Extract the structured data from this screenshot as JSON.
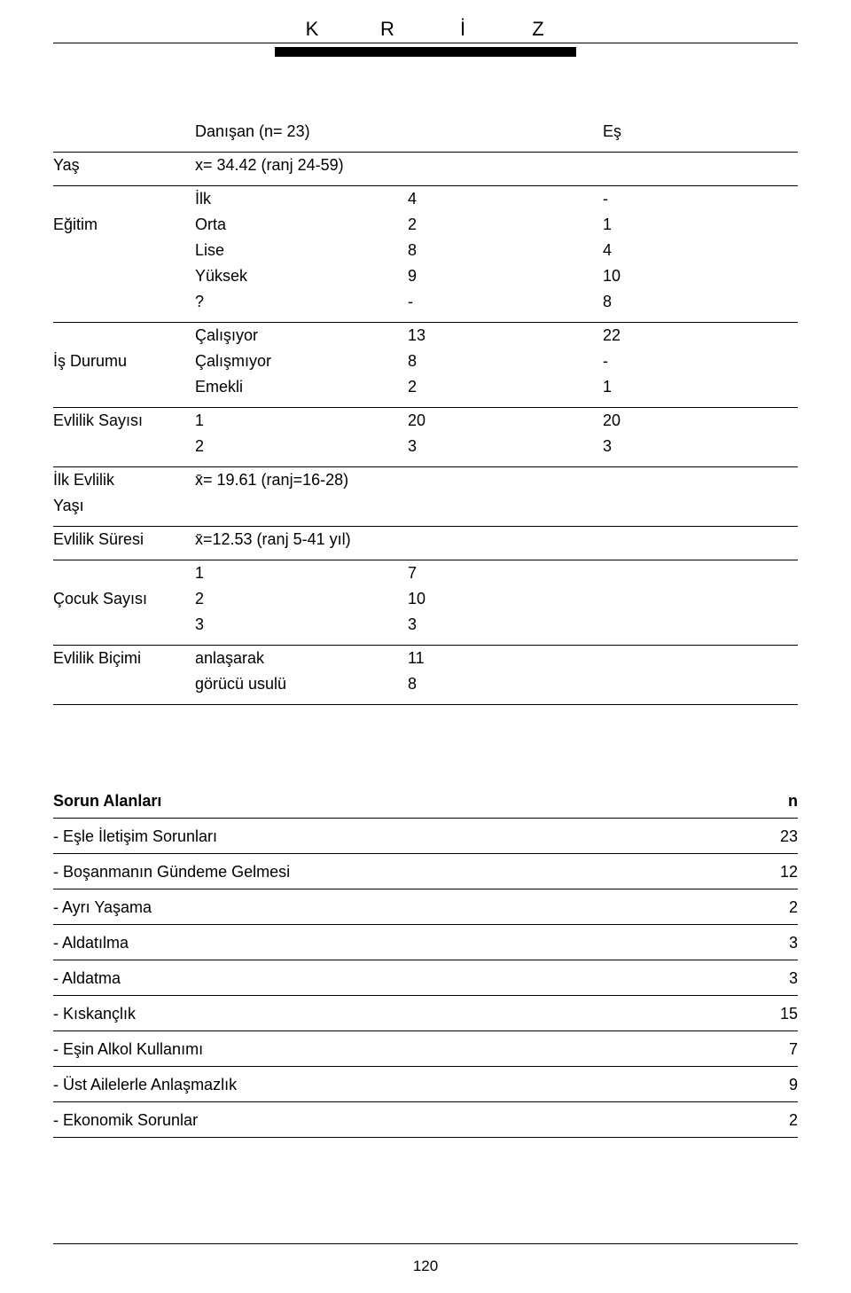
{
  "header": {
    "letters": [
      "K",
      "R",
      "İ",
      "Z"
    ]
  },
  "t1": {
    "col_headers": {
      "c2": "Danışan (n= 23)",
      "c3": "Eş"
    },
    "rows": {
      "yas": {
        "label": "Yaş",
        "sub": "x= 34.42 (ranj 24-59)"
      },
      "egitim": {
        "label": "Eğitim",
        "items": [
          {
            "sub": "İlk",
            "v1": "4",
            "v2": "-"
          },
          {
            "sub": "Orta",
            "v1": "2",
            "v2": "1"
          },
          {
            "sub": "Lise",
            "v1": "8",
            "v2": "4"
          },
          {
            "sub": "Yüksek",
            "v1": "9",
            "v2": "10"
          },
          {
            "sub": "?",
            "v1": "-",
            "v2": "8"
          }
        ]
      },
      "isdurumu": {
        "label": "İş Durumu",
        "items": [
          {
            "sub": "Çalışıyor",
            "v1": "13",
            "v2": "22"
          },
          {
            "sub": "Çalışmıyor",
            "v1": "8",
            "v2": "-"
          },
          {
            "sub": "Emekli",
            "v1": "2",
            "v2": "1"
          }
        ]
      },
      "evsayisi": {
        "label": "Evlilik Sayısı",
        "items": [
          {
            "sub": "1",
            "v1": "20",
            "v2": "20"
          },
          {
            "sub": "2",
            "v1": "3",
            "v2": "3"
          }
        ]
      },
      "ilkevlilik": {
        "label_l1": "İlk Evlilik",
        "label_l2": "Yaşı",
        "sub": "x̄= 19.61 (ranj=16-28)"
      },
      "evsuresi": {
        "label": "Evlilik Süresi",
        "sub": "x̄=12.53 (ranj 5-41 yıl)"
      },
      "cocuk": {
        "label": "Çocuk Sayısı",
        "items": [
          {
            "sub": "1",
            "v1": "7"
          },
          {
            "sub": "2",
            "v1": "10"
          },
          {
            "sub": "3",
            "v1": "3"
          }
        ]
      },
      "evbicimi": {
        "label": "Evlilik Biçimi",
        "items": [
          {
            "sub": "anlaşarak",
            "v1": "11"
          },
          {
            "sub": "görücü usulü",
            "v1": "8"
          }
        ]
      }
    }
  },
  "t2": {
    "header": {
      "label": "Sorun Alanları",
      "n": "n"
    },
    "rows": [
      {
        "label": "- Eşle İletişim Sorunları",
        "n": "23"
      },
      {
        "label": "- Boşanmanın Gündeme Gelmesi",
        "n": "12"
      },
      {
        "label": "- Ayrı Yaşama",
        "n": "2"
      },
      {
        "label": "- Aldatılma",
        "n": "3"
      },
      {
        "label": "- Aldatma",
        "n": "3"
      },
      {
        "label": "- Kıskançlık",
        "n": "15"
      },
      {
        "label": "- Eşin Alkol Kullanımı",
        "n": "7"
      },
      {
        "label": "- Üst Ailelerle Anlaşmazlık",
        "n": "9"
      },
      {
        "label": "- Ekonomik Sorunlar",
        "n": "2"
      }
    ]
  },
  "page_number": "120",
  "style": {
    "background_color": "#ffffff",
    "text_color": "#000000",
    "rule_color": "#000000",
    "font_family": "Arial, Helvetica, sans-serif",
    "body_fontsize_pt": 13
  }
}
